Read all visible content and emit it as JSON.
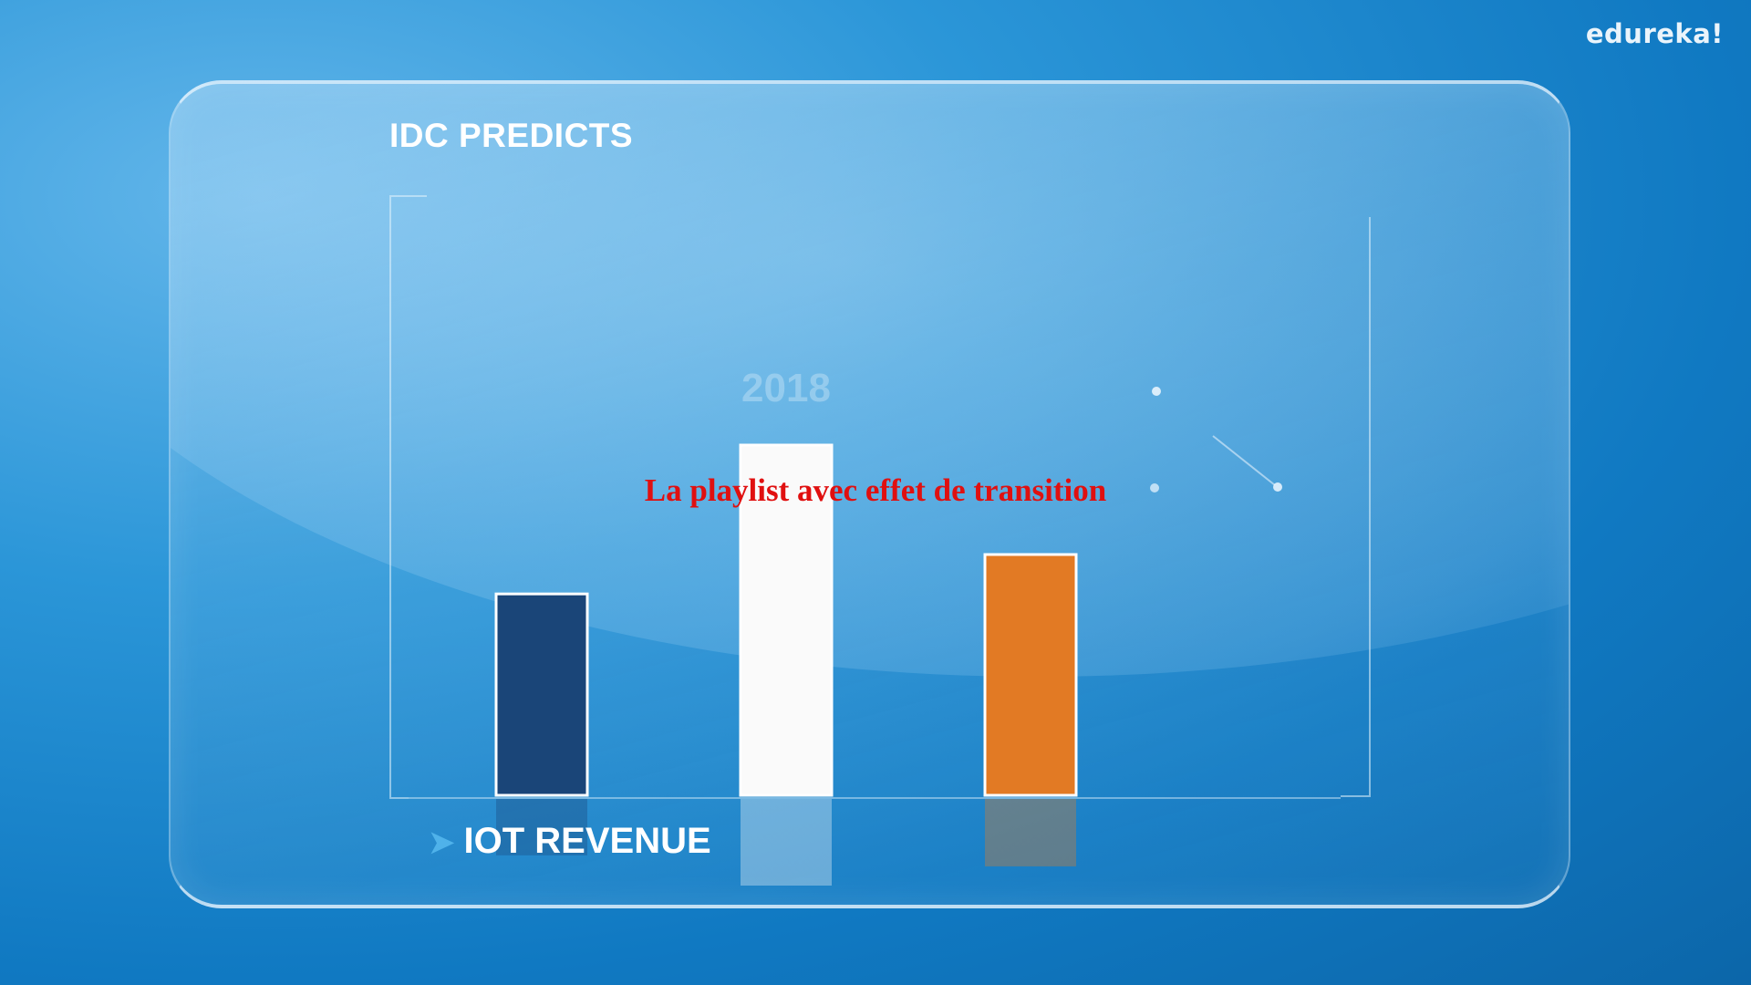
{
  "brand": {
    "logo_text": "edureka!"
  },
  "panel": {
    "title": "IDC PREDICTS",
    "bottom_label": "IOT REVENUE"
  },
  "overlay": {
    "text": "La playlist avec effet de transition"
  },
  "chart_data": {
    "type": "bar",
    "title": "IDC PREDICTS",
    "xlabel": "IOT REVENUE",
    "ylabel": "",
    "annotation": "2018",
    "categories": [
      "",
      "",
      ""
    ],
    "values": [
      2.3,
      4.0,
      2.75
    ],
    "ylim": [
      0,
      5
    ],
    "bar_colors": [
      "#1a4578",
      "#fafafa",
      "#e27a24"
    ],
    "grid": false,
    "legend": "none"
  }
}
